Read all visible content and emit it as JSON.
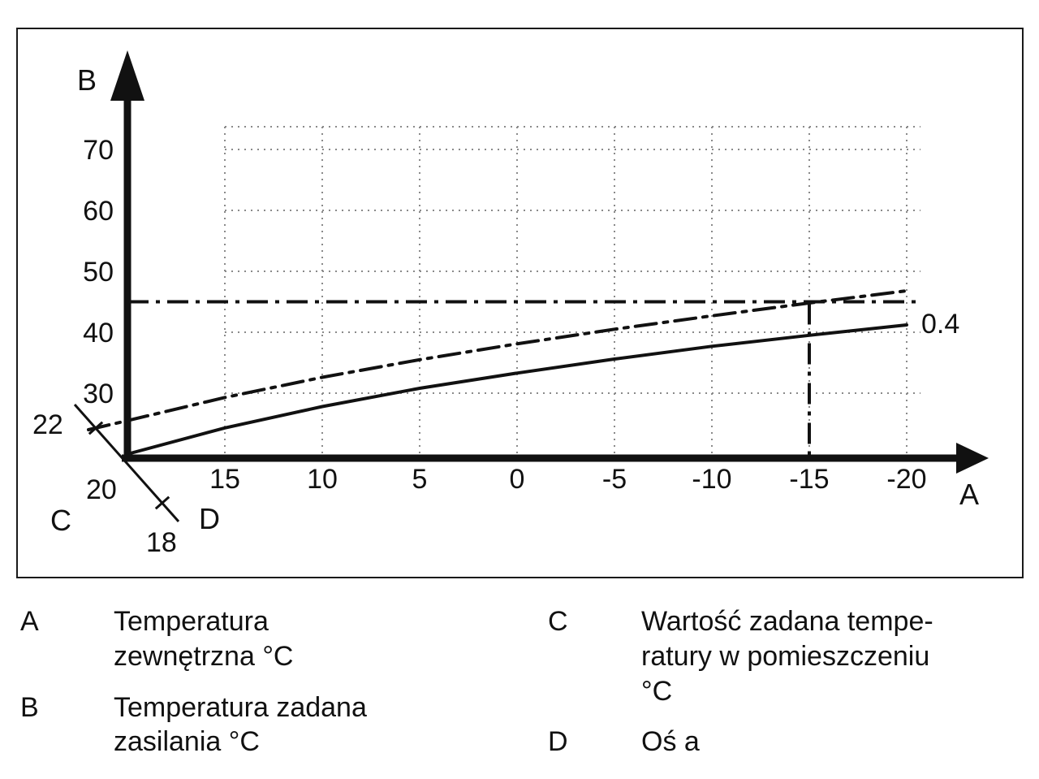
{
  "chart_data": {
    "type": "line",
    "title": "",
    "x_axis": {
      "label": "A",
      "ticks": [
        15,
        10,
        5,
        0,
        -5,
        -10,
        -15,
        -20
      ],
      "range": [
        20,
        -22
      ],
      "reversed": true
    },
    "y_axis": {
      "label": "B",
      "ticks": [
        70,
        60,
        50,
        40,
        30
      ],
      "range": [
        18,
        78
      ]
    },
    "diag_axis": {
      "label_c": "C",
      "label_d": "D",
      "ticks": [
        "22",
        "20",
        "18"
      ]
    },
    "grid": "dotted",
    "series": [
      {
        "name": "heating-curve-solid",
        "label": "0.4",
        "style": "solid",
        "x": [
          20,
          15,
          10,
          5,
          0,
          -5,
          -10,
          -15,
          -20
        ],
        "y": [
          20,
          24.3,
          27.8,
          30.8,
          33.3,
          35.6,
          37.7,
          39.5,
          41.2
        ]
      },
      {
        "name": "heating-curve-dashdot",
        "label": "",
        "style": "dashdot",
        "x": [
          22,
          20,
          15,
          10,
          5,
          0,
          -5,
          -10,
          -15,
          -20
        ],
        "y": [
          24,
          25.5,
          29.3,
          32.6,
          35.5,
          38.1,
          40.5,
          42.7,
          44.8,
          46.8
        ]
      }
    ],
    "reference_lines": [
      {
        "type": "horizontal",
        "value": 45,
        "style": "dashdot"
      },
      {
        "type": "vertical",
        "value": -15,
        "style": "dashdot"
      }
    ]
  },
  "legend": {
    "items": [
      {
        "key": "A",
        "lines": [
          "Temperatura",
          "zewnętrzna °C"
        ]
      },
      {
        "key": "B",
        "lines": [
          "Temperatura zadana",
          "zasilania °C"
        ]
      },
      {
        "key": "C",
        "lines": [
          "Wartość zadana tempe-",
          "ratury w pomieszczeniu",
          "°C"
        ]
      },
      {
        "key": "D",
        "lines": [
          "Oś a"
        ]
      }
    ]
  }
}
